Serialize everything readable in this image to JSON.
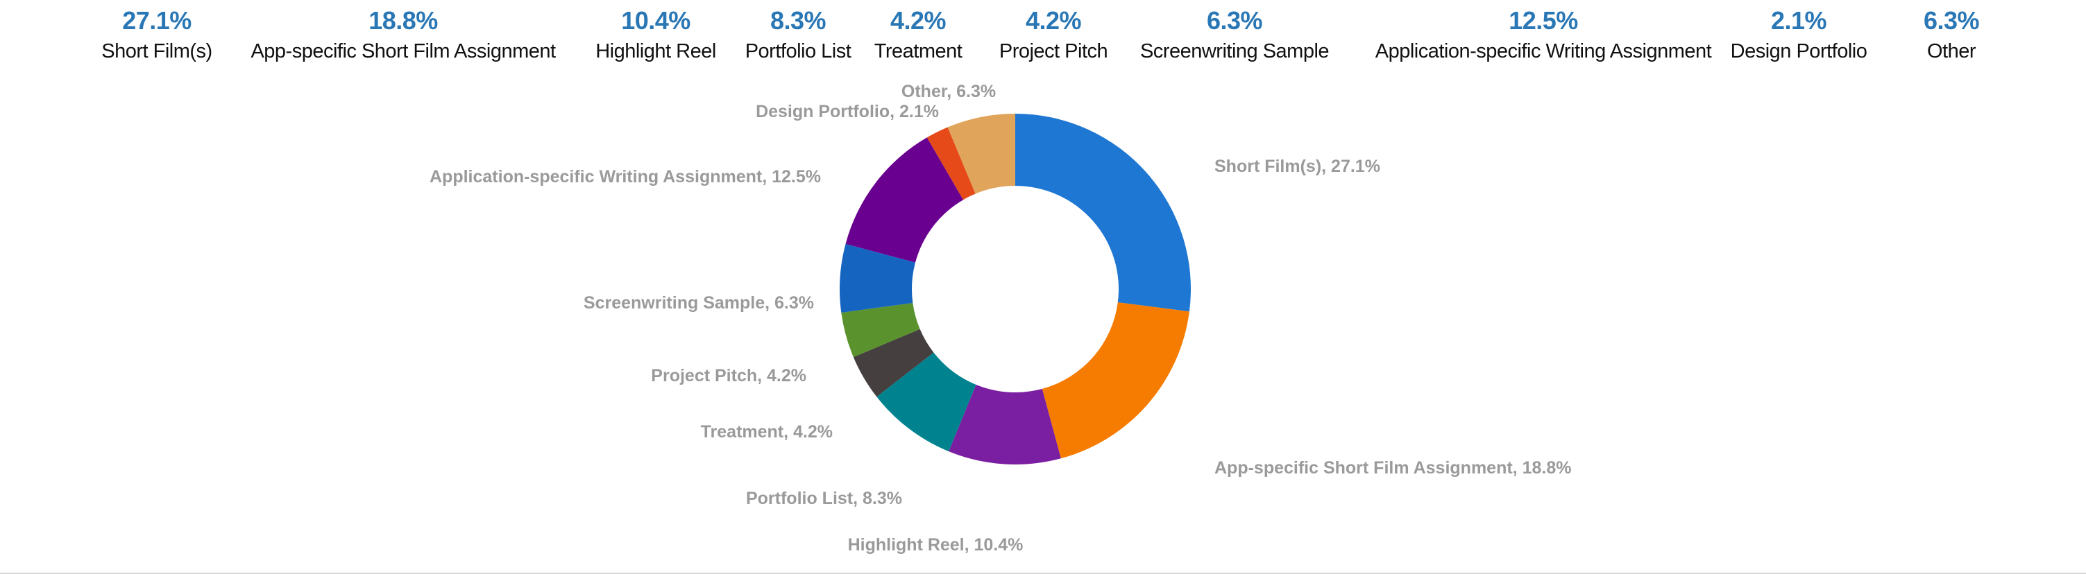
{
  "chart_data": {
    "type": "pie",
    "donut": true,
    "categories": [
      "Short Film(s)",
      "App-specific Short Film Assignment",
      "Highlight Reel",
      "Portfolio List",
      "Treatment",
      "Project Pitch",
      "Screenwriting Sample",
      "Application-specific Writing Assignment",
      "Design Portfolio",
      "Other"
    ],
    "values": [
      27.1,
      18.8,
      10.4,
      8.3,
      4.2,
      4.2,
      6.3,
      12.5,
      2.1,
      6.3
    ],
    "value_labels": [
      "27.1%",
      "18.8%",
      "10.4%",
      "8.3%",
      "4.2%",
      "4.2%",
      "6.3%",
      "12.5%",
      "2.1%",
      "6.3%"
    ],
    "slice_labels": [
      "Short Film(s), 27.1%",
      "App-specific Short Film Assignment, 18.8%",
      "Highlight Reel, 10.4%",
      "Portfolio List, 8.3%",
      "Treatment, 4.2%",
      "Project Pitch, 4.2%",
      "Screenwriting Sample, 6.3%",
      "Application-specific Writing Assignment, 12.5%",
      "Design Portfolio, 2.1%",
      "Other, 6.3%"
    ],
    "colors": [
      "#1e77d2",
      "#f57c00",
      "#7b1fa2",
      "#00838f",
      "#453f3f",
      "#5a922d",
      "#1565c0",
      "#6a0090",
      "#e64a19",
      "#e0a55a"
    ],
    "legend": "top"
  }
}
